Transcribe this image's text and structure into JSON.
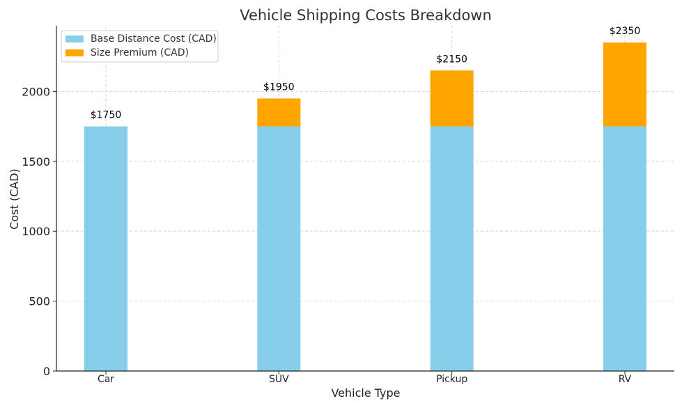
{
  "chart_data": {
    "type": "bar",
    "stacked": true,
    "title": "Vehicle Shipping Costs Breakdown",
    "xlabel": "Vehicle Type",
    "ylabel": "Cost (CAD)",
    "categories": [
      "Car",
      "SUV",
      "Pickup",
      "RV"
    ],
    "series": [
      {
        "name": "Base Distance Cost (CAD)",
        "values": [
          1750,
          1750,
          1750,
          1750
        ],
        "color": "#87CEEB"
      },
      {
        "name": "Size Premium (CAD)",
        "values": [
          0,
          200,
          400,
          600
        ],
        "color": "#FFA500"
      }
    ],
    "total_labels": [
      "$1750",
      "$1950",
      "$2150",
      "$2350"
    ],
    "ylim": [
      0,
      2470
    ],
    "yticks": [
      0,
      500,
      1000,
      1500,
      2000
    ],
    "grid": true,
    "legend_position": "top-left"
  }
}
